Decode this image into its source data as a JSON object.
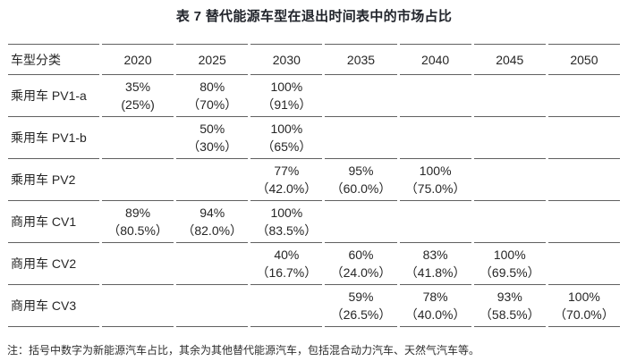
{
  "title": "表 7 替代能源车型在退出时间表中的市场占比",
  "footnote": "注：括号中数字为新能源汽车占比，其余为其他替代能源汽车，包括混合动力汽车、天然气汽车等。",
  "colors": {
    "rule": "#606060",
    "text": "#262626",
    "title": "#21242b",
    "background": "#ffffff"
  },
  "table": {
    "columns": [
      "车型分类",
      "2020",
      "2025",
      "2030",
      "2035",
      "2040",
      "2045",
      "2050"
    ],
    "rows": [
      {
        "label": "乘用车 PV1-a",
        "cells": [
          [
            "35%",
            "(25%)"
          ],
          [
            "80%",
            "（70%）"
          ],
          [
            "100%",
            "（91%）"
          ],
          null,
          null,
          null,
          null
        ]
      },
      {
        "label": "乘用车 PV1-b",
        "cells": [
          null,
          [
            "50%",
            "（30%）"
          ],
          [
            "100%",
            "（65%）"
          ],
          null,
          null,
          null,
          null
        ]
      },
      {
        "label": "乘用车 PV2",
        "cells": [
          null,
          null,
          [
            "77%",
            "（42.0%）"
          ],
          [
            "95%",
            "（60.0%）"
          ],
          [
            "100%",
            "（75.0%）"
          ],
          null,
          null
        ]
      },
      {
        "label": "商用车 CV1",
        "cells": [
          [
            "89%",
            "（80.5%）"
          ],
          [
            "94%",
            "（82.0%）"
          ],
          [
            "100%",
            "（83.5%）"
          ],
          null,
          null,
          null,
          null
        ]
      },
      {
        "label": "商用车 CV2",
        "cells": [
          null,
          null,
          [
            "40%",
            "（16.7%）"
          ],
          [
            "60%",
            "（24.0%）"
          ],
          [
            "83%",
            "（41.8%）"
          ],
          [
            "100%",
            "（69.5%）"
          ],
          null
        ]
      },
      {
        "label": "商用车 CV3",
        "cells": [
          null,
          null,
          null,
          [
            "59%",
            "（26.5%）"
          ],
          [
            "78%",
            "（40.0%）"
          ],
          [
            "93%",
            "（58.5%）"
          ],
          [
            "100%",
            "（70.0%）"
          ]
        ]
      }
    ]
  }
}
